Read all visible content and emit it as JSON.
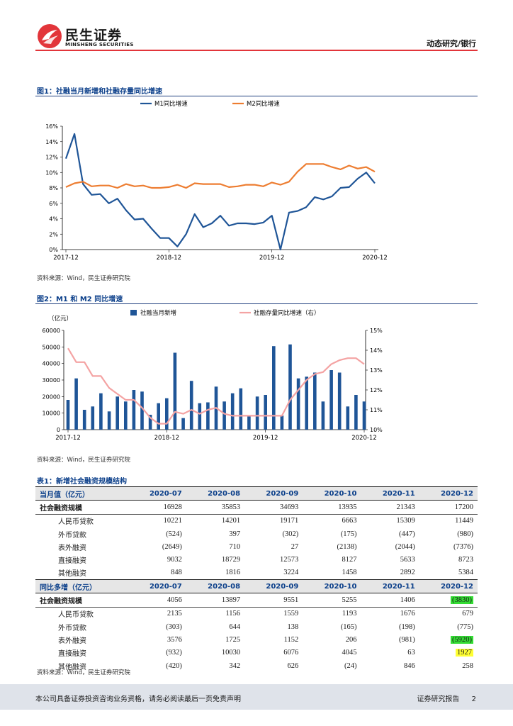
{
  "header": {
    "brand_cn": "民生证券",
    "brand_en": "MINSHENG SECURITIES",
    "report_type": "动态研究/银行",
    "brand_color": "#e2353a"
  },
  "figure1": {
    "title": "图1：社融当月新增和社融存量同比增速",
    "source": "资料来源：Wind，民生证券研究院"
  },
  "figure2": {
    "title": "图2：M1 和 M2 同比增速",
    "source": "资料来源：Wind，民生证券研究院"
  },
  "chart_data": [
    {
      "type": "line",
      "x_ticks": [
        "2017-12",
        "2018-12",
        "2019-12",
        "2020-12"
      ],
      "ylim": [
        0,
        16
      ],
      "y_ticks": [
        "0%",
        "2%",
        "4%",
        "6%",
        "8%",
        "10%",
        "12%",
        "14%",
        "16%"
      ],
      "legend_position": "top",
      "series": [
        {
          "name": "M1同比增速",
          "color": "#1f5597",
          "values": [
            11.8,
            15.0,
            8.5,
            7.1,
            7.2,
            6.0,
            6.6,
            5.1,
            3.9,
            4.0,
            2.7,
            1.5,
            1.5,
            0.4,
            2.0,
            4.6,
            2.9,
            3.4,
            4.4,
            3.1,
            3.4,
            3.4,
            3.3,
            3.5,
            4.4,
            0.0,
            4.8,
            5.0,
            5.5,
            6.8,
            6.5,
            6.9,
            8.0,
            8.1,
            9.2,
            10.0,
            8.6
          ]
        },
        {
          "name": "M2同比增速",
          "color": "#ed7d31",
          "values": [
            8.1,
            8.6,
            8.8,
            8.2,
            8.3,
            8.3,
            8.0,
            8.5,
            8.2,
            8.3,
            8.0,
            8.0,
            8.1,
            8.4,
            8.0,
            8.6,
            8.5,
            8.5,
            8.5,
            8.1,
            8.2,
            8.4,
            8.4,
            8.2,
            8.7,
            8.4,
            8.8,
            10.1,
            11.1,
            11.1,
            11.1,
            10.7,
            10.4,
            10.9,
            10.5,
            10.7,
            10.1
          ]
        }
      ]
    },
    {
      "type": "bar",
      "x_ticks": [
        "2017-12",
        "2018-12",
        "2019-12",
        "2020-12"
      ],
      "ylabel": "（亿元）",
      "ylim": [
        0,
        60000
      ],
      "y_ticks": [
        "0",
        "10000",
        "20000",
        "30000",
        "40000",
        "50000",
        "60000"
      ],
      "y2lim": [
        10,
        15
      ],
      "y2_ticks": [
        "10%",
        "11%",
        "12%",
        "13%",
        "14%",
        "15%"
      ],
      "legend_position": "top",
      "series": [
        {
          "name": "社融当月新增",
          "color": "#1f5597",
          "values": [
            18000,
            31000,
            12000,
            14000,
            22000,
            11000,
            20000,
            17000,
            24000,
            23000,
            9000,
            16000,
            19000,
            46500,
            7000,
            29500,
            16000,
            16500,
            26000,
            17000,
            22000,
            25000,
            8000,
            20000,
            21000,
            50500,
            8500,
            51500,
            31000,
            32000,
            34500,
            17000,
            36000,
            34500,
            14000,
            21000,
            17000
          ]
        },
        {
          "name": "社融存量同比增速（右）",
          "color": "#f4a3a3",
          "axis": "right",
          "values": [
            14.1,
            13.4,
            13.4,
            12.7,
            12.7,
            12.1,
            11.8,
            11.5,
            11.5,
            11.1,
            10.6,
            10.3,
            10.3,
            10.9,
            10.8,
            11.0,
            10.8,
            11.0,
            11.1,
            10.8,
            10.7,
            10.7,
            10.7,
            10.7,
            10.7,
            10.7,
            10.7,
            11.5,
            12.0,
            12.5,
            12.8,
            12.9,
            13.3,
            13.5,
            13.6,
            13.6,
            13.3
          ]
        }
      ]
    }
  ],
  "table1": {
    "title": "表1：新增社会融资规模结构",
    "source": "资料来源：Wind，民生证券研究院",
    "monthly": {
      "header": [
        "当月值（亿元）",
        "2020-07",
        "2020-08",
        "2020-09",
        "2020-10",
        "2020-11",
        "2020-12"
      ],
      "rows": [
        {
          "label": "社会融资规模",
          "values": [
            "16928",
            "35853",
            "34693",
            "13935",
            "21343",
            "17200"
          ]
        },
        {
          "label": "人民币贷款",
          "values": [
            "10221",
            "14201",
            "19171",
            "6663",
            "15309",
            "11449"
          ]
        },
        {
          "label": "外币贷款",
          "values": [
            "(524)",
            "397",
            "(302)",
            "(175)",
            "(447)",
            "(980)"
          ]
        },
        {
          "label": "表外融资",
          "values": [
            "(2649)",
            "710",
            "27",
            "(2138)",
            "(2044)",
            "(7376)"
          ]
        },
        {
          "label": "直接融资",
          "values": [
            "9032",
            "18729",
            "12573",
            "8127",
            "5633",
            "8723"
          ]
        },
        {
          "label": "其他融资",
          "values": [
            "848",
            "1816",
            "3224",
            "1458",
            "2892",
            "5384"
          ]
        }
      ]
    },
    "yoy": {
      "header": [
        "同比多增（亿元）",
        "2020-07",
        "2020-08",
        "2020-09",
        "2020-10",
        "2020-11",
        "2020-12"
      ],
      "rows": [
        {
          "label": "社会融资规模",
          "values": [
            "4056",
            "13897",
            "9551",
            "5255",
            "1406",
            "(3830)"
          ]
        },
        {
          "label": "人民币贷款",
          "values": [
            "2135",
            "1156",
            "1559",
            "1193",
            "1676",
            "679"
          ]
        },
        {
          "label": "外币贷款",
          "values": [
            "(303)",
            "644",
            "138",
            "(165)",
            "(198)",
            "(775)"
          ]
        },
        {
          "label": "表外融资",
          "values": [
            "3576",
            "1725",
            "1152",
            "206",
            "(981)",
            "(5920)"
          ]
        },
        {
          "label": "直接融资",
          "values": [
            "(932)",
            "10030",
            "6076",
            "4045",
            "63",
            "1927"
          ]
        },
        {
          "label": "其他融资",
          "values": [
            "(420)",
            "342",
            "626",
            "(24)",
            "846",
            "258"
          ]
        }
      ]
    },
    "highlight_green": "#33dd33",
    "highlight_yellow": "#ffff33"
  },
  "footer": {
    "disclaimer": "本公司具备证券投资咨询业务资格，请务必阅读最后一页免责声明",
    "report_label": "证券研究报告",
    "page_number": "2"
  }
}
